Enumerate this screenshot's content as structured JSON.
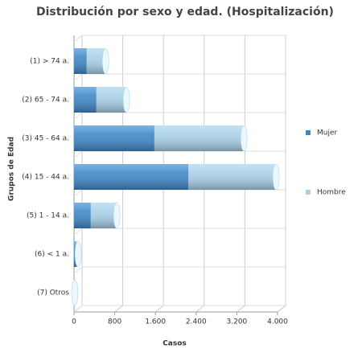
{
  "chart_data": {
    "type": "bar",
    "orientation": "horizontal",
    "stacked": true,
    "title": "Distribución por sexo y edad. (Hospitalización)",
    "x_label": "Casos",
    "y_label": "Grupos de Edad",
    "categories": [
      "(1) > 74 a.",
      "(2) 65 - 74 a.",
      "(3) 45 - 64 a.",
      "(4) 15 - 44 a.",
      "(5) 1 - 14 a.",
      "(6) < 1 a.",
      "(7) Otros"
    ],
    "series": [
      {
        "name": "Mujer",
        "color": "#3f88c8",
        "values": [
          250,
          440,
          1580,
          2250,
          330,
          40,
          5
        ]
      },
      {
        "name": "Hombre",
        "color": "#a9d2ea",
        "values": [
          370,
          590,
          1760,
          1720,
          510,
          40,
          10
        ]
      }
    ],
    "xlim": [
      0,
      4000
    ],
    "xticks": [
      0,
      {
        "value": 800,
        "label": "800"
      },
      {
        "value": 1600,
        "label": "1.600"
      },
      {
        "value": 2400,
        "label": "2.400"
      },
      {
        "value": 3200,
        "label": "3.200"
      },
      {
        "value": 4000,
        "label": "4.000"
      }
    ],
    "grid": true,
    "legend": "right"
  }
}
